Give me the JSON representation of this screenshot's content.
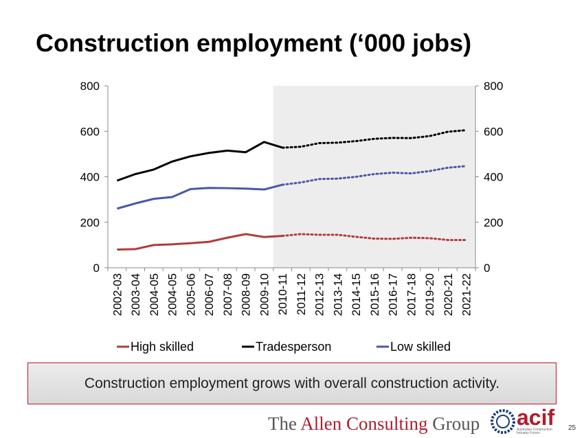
{
  "title": "Construction employment (‘000 jobs)",
  "callout": "Construction employment grows with overall construction activity.",
  "footer": {
    "brand_pre": "The ",
    "brand_mid": "Allen Consulting",
    "brand_post": " Group",
    "logo_text": "acif",
    "logo_sub": "Australian Construction Industry Forum",
    "page_number": "25"
  },
  "colors": {
    "high_skilled": "#b23a3a",
    "tradesperson": "#000000",
    "low_skilled": "#4a56a6",
    "forecast_shade": "#ededed",
    "callout_border": "#b01c2e"
  },
  "chart_data": {
    "type": "line",
    "title": "Construction employment (‘000 jobs)",
    "xlabel": "",
    "ylabel": "",
    "ylim": [
      0,
      800
    ],
    "yticks": [
      0,
      200,
      400,
      600,
      800
    ],
    "secondary_axis": true,
    "grid": false,
    "legend_position": "bottom",
    "forecast_start": "2010-11",
    "categories": [
      "2002-03",
      "2003-04",
      "2004-05",
      "2004-05",
      "2005-06",
      "2006-07",
      "2007-08",
      "2008-09",
      "2009-10",
      "2010-11",
      "2011-12",
      "2012-13",
      "2013-14",
      "2014-15",
      "2015-16",
      "2016-17",
      "2017-18",
      "2019-20",
      "2020-21",
      "2021-22"
    ],
    "series": [
      {
        "name": "High skilled",
        "values": [
          80,
          82,
          100,
          103,
          108,
          114,
          132,
          148,
          135,
          140,
          148,
          145,
          145,
          136,
          128,
          127,
          132,
          130,
          122,
          122
        ]
      },
      {
        "name": "Tradesperson",
        "values": [
          383,
          412,
          432,
          467,
          490,
          505,
          515,
          508,
          553,
          528,
          532,
          548,
          550,
          557,
          567,
          571,
          570,
          579,
          598,
          605
        ]
      },
      {
        "name": "Low skilled",
        "values": [
          260,
          283,
          303,
          311,
          346,
          351,
          350,
          348,
          344,
          365,
          375,
          390,
          392,
          400,
          412,
          418,
          415,
          425,
          440,
          447
        ]
      }
    ]
  }
}
